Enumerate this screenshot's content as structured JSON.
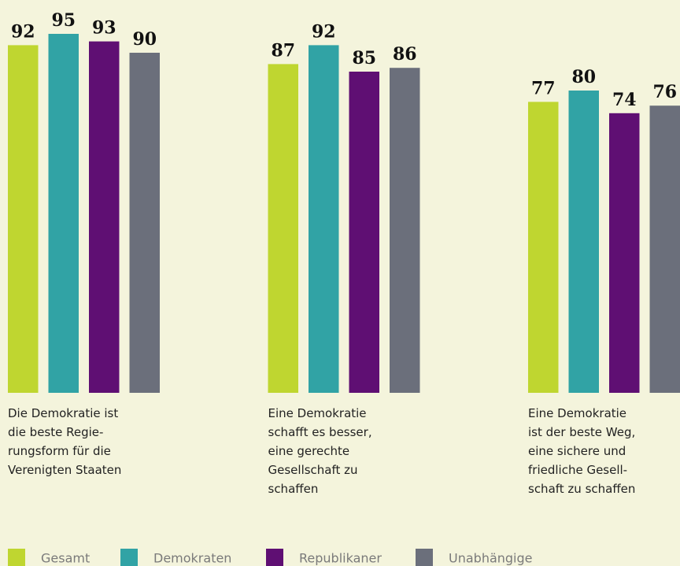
{
  "chart_data": {
    "type": "bar",
    "categories": [
      "Die Demokratie ist\ndie beste Regie-\nrungsform für die\nVerenigten Staaten",
      "Eine Demokratie\nschafft es besser,\neine gerechte\nGesellschaft zu\nschaffen",
      "Eine Demokratie\nist der beste Weg,\neine sichere und\nfriedliche Gesell-\nschaft zu schaffen"
    ],
    "series": [
      {
        "name": "Gesamt",
        "color": "#bfd630",
        "values": [
          92,
          87,
          77
        ]
      },
      {
        "name": "Demokraten",
        "color": "#31a3a5",
        "values": [
          95,
          92,
          80
        ]
      },
      {
        "name": "Republikaner",
        "color": "#5f0f73",
        "values": [
          93,
          85,
          74
        ]
      },
      {
        "name": "Unabhängige",
        "color": "#6b6f7b",
        "values": [
          90,
          86,
          76
        ]
      }
    ],
    "ylim": [
      0,
      100
    ]
  }
}
